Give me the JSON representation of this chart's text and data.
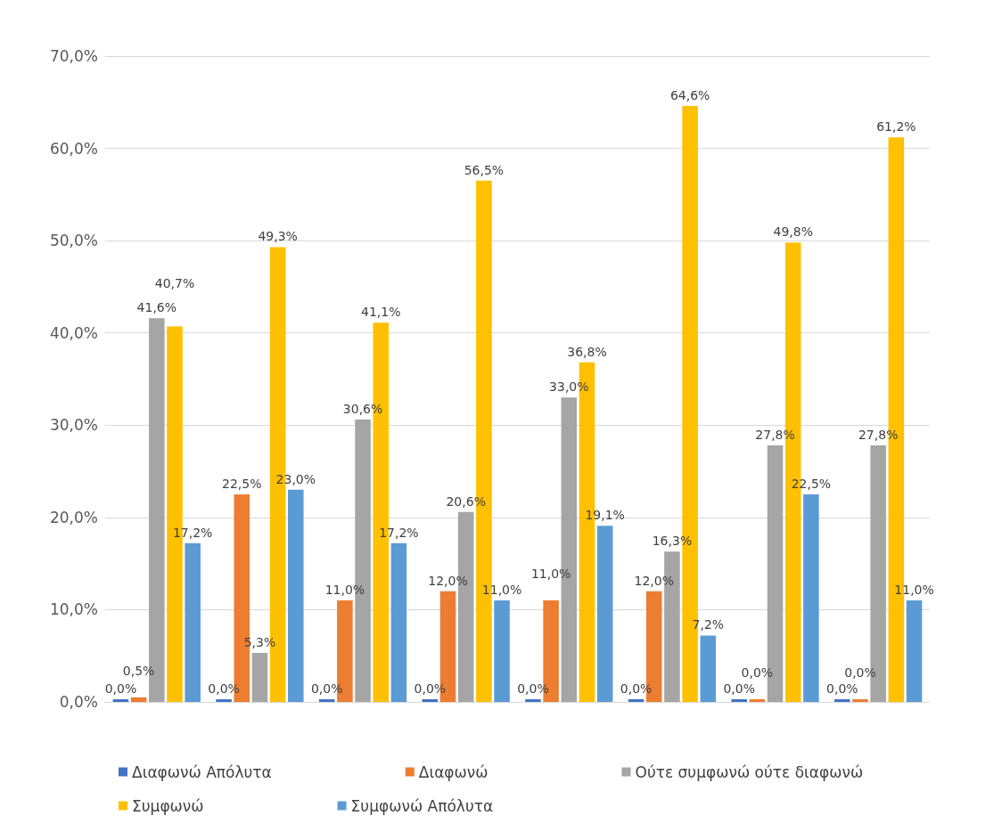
{
  "chart_data": {
    "type": "bar",
    "categories": [
      null,
      null,
      null,
      null,
      null,
      null,
      null,
      null
    ],
    "series": [
      {
        "name": "Διαφωνώ Απόλυτα",
        "color": "#4472c4",
        "values": [
          0,
          0,
          0,
          0,
          0,
          0,
          0,
          0
        ],
        "value_labels": [
          "0,0%",
          "0,0%",
          "0,0%",
          "0,0%",
          "0,0%",
          "0,0%",
          "0,0%",
          "0,0%"
        ]
      },
      {
        "name": "Διαφωνώ",
        "color": "#ed7d31",
        "values": [
          0.5,
          22.5,
          11.0,
          12.0,
          11.0,
          12.0,
          0.0,
          0.0
        ],
        "value_labels": [
          "0,5%",
          "22,5%",
          "11,0%",
          "12,0%",
          "11,0%",
          "12,0%",
          "0,0%",
          "0,0%"
        ]
      },
      {
        "name": "Ούτε συμφωνώ ούτε διαφωνώ",
        "color": "#a5a5a5",
        "values": [
          41.6,
          5.3,
          30.6,
          20.6,
          33.0,
          16.3,
          27.8,
          27.8
        ],
        "value_labels": [
          "41,6%",
          "5,3%",
          "30,6%",
          "20,6%",
          "33,0%",
          "16,3%",
          "27,8%",
          "27,8%"
        ]
      },
      {
        "name": "Συμφωνώ",
        "color": "#ffc000",
        "values": [
          40.7,
          49.3,
          41.1,
          56.5,
          36.8,
          64.6,
          49.8,
          61.2
        ],
        "value_labels": [
          "40,7%",
          "49,3%",
          "41,1%",
          "56,5%",
          "36,8%",
          "64,6%",
          "49,8%",
          "61,2%"
        ]
      },
      {
        "name": "Συμφωνώ Απόλυτα",
        "color": "#5b9bd5",
        "values": [
          17.2,
          23.0,
          17.2,
          11.0,
          19.1,
          7.2,
          22.5,
          11.0
        ],
        "value_labels": [
          "17,2%",
          "23,0%",
          "17,2%",
          "11,0%",
          "19,1%",
          "7,2%",
          "22,5%",
          "11,0%"
        ]
      }
    ],
    "ylim": [
      0,
      70
    ],
    "yticks": [
      {
        "value": 0,
        "label": "0,0%"
      },
      {
        "value": 10,
        "label": "10,0%"
      },
      {
        "value": 20,
        "label": "20,0%"
      },
      {
        "value": 30,
        "label": "30,0%"
      },
      {
        "value": 40,
        "label": "40,0%"
      },
      {
        "value": 50,
        "label": "50,0%"
      },
      {
        "value": 60,
        "label": "60,0%"
      },
      {
        "value": 70,
        "label": "70,0%"
      }
    ],
    "grid": "y",
    "legend": "bottom"
  }
}
